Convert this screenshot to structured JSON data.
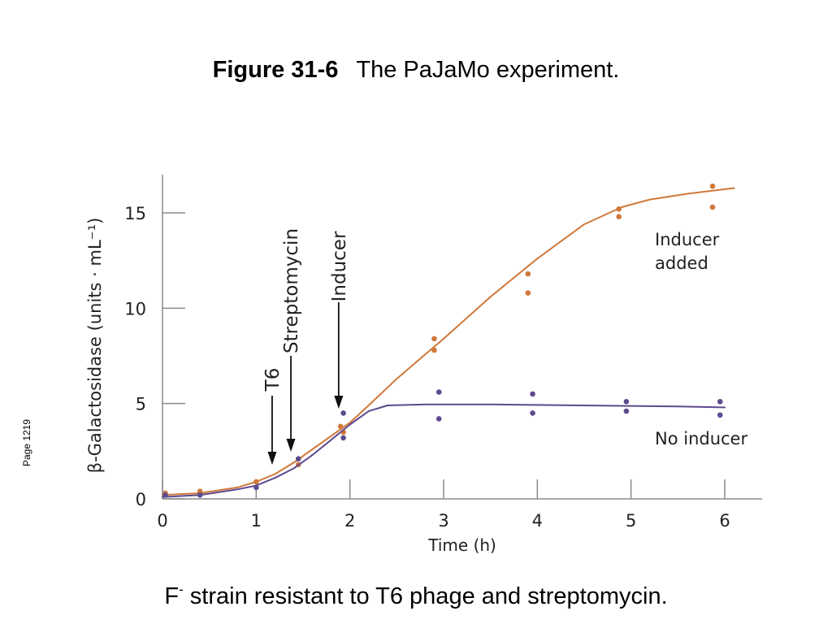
{
  "title": {
    "figure_label": "Figure 31-6",
    "text": "The PaJaMo experiment."
  },
  "side_note": "Page 1219",
  "caption": {
    "prefix": "F",
    "superscript": "-",
    "text": " strain resistant to T6 phage and streptomycin."
  },
  "chart_data": {
    "type": "line",
    "xlabel": "Time (h)",
    "ylabel": "β-Galactosidase (units · mL⁻¹)",
    "xlim": [
      0,
      6.4
    ],
    "ylim": [
      0,
      17
    ],
    "xticks": [
      0,
      1,
      2,
      3,
      4,
      5,
      6
    ],
    "yticks": [
      0,
      5,
      10,
      15
    ],
    "grid": false,
    "series": [
      {
        "name": "Inducer added",
        "color": "#d0783a",
        "curve": [
          [
            0,
            0.2
          ],
          [
            0.4,
            0.3
          ],
          [
            0.8,
            0.6
          ],
          [
            1.0,
            0.9
          ],
          [
            1.2,
            1.3
          ],
          [
            1.4,
            1.9
          ],
          [
            1.6,
            2.6
          ],
          [
            1.8,
            3.3
          ],
          [
            2.0,
            4.0
          ],
          [
            2.2,
            4.9
          ],
          [
            2.5,
            6.3
          ],
          [
            3.0,
            8.4
          ],
          [
            3.5,
            10.6
          ],
          [
            4.0,
            12.6
          ],
          [
            4.5,
            14.4
          ],
          [
            4.9,
            15.3
          ],
          [
            5.2,
            15.7
          ],
          [
            5.6,
            16.0
          ],
          [
            6.1,
            16.3
          ]
        ],
        "points": [
          [
            0.03,
            0.3
          ],
          [
            0.4,
            0.4
          ],
          [
            1.0,
            0.9
          ],
          [
            1.45,
            1.8
          ],
          [
            1.9,
            3.8
          ],
          [
            1.93,
            3.5
          ],
          [
            2.9,
            8.4
          ],
          [
            2.9,
            7.8
          ],
          [
            3.9,
            11.8
          ],
          [
            3.9,
            10.8
          ],
          [
            4.87,
            15.2
          ],
          [
            4.87,
            14.8
          ],
          [
            5.87,
            16.4
          ],
          [
            5.87,
            15.3
          ]
        ]
      },
      {
        "name": "No inducer",
        "color": "#5e4a8e",
        "curve": [
          [
            0,
            0.1
          ],
          [
            0.4,
            0.2
          ],
          [
            0.8,
            0.5
          ],
          [
            1.0,
            0.7
          ],
          [
            1.2,
            1.1
          ],
          [
            1.4,
            1.6
          ],
          [
            1.6,
            2.3
          ],
          [
            1.8,
            3.1
          ],
          [
            2.0,
            3.9
          ],
          [
            2.2,
            4.6
          ],
          [
            2.4,
            4.9
          ],
          [
            2.8,
            4.95
          ],
          [
            3.5,
            4.95
          ],
          [
            4.5,
            4.9
          ],
          [
            5.5,
            4.85
          ],
          [
            6.0,
            4.8
          ]
        ],
        "points": [
          [
            0.03,
            0.2
          ],
          [
            0.4,
            0.2
          ],
          [
            1.0,
            0.6
          ],
          [
            1.45,
            2.1
          ],
          [
            1.93,
            4.5
          ],
          [
            1.93,
            3.2
          ],
          [
            2.95,
            5.6
          ],
          [
            2.95,
            4.2
          ],
          [
            3.95,
            5.5
          ],
          [
            3.95,
            4.5
          ],
          [
            4.95,
            5.1
          ],
          [
            4.95,
            4.6
          ],
          [
            5.95,
            5.1
          ],
          [
            5.95,
            4.4
          ]
        ]
      }
    ],
    "annotations": [
      {
        "label": "T6",
        "x": 1.17
      },
      {
        "label": "Streptomycin",
        "x": 1.37
      },
      {
        "label": "Inducer",
        "x": 1.88
      }
    ],
    "series_labels": [
      {
        "lines": [
          "Inducer",
          "added"
        ]
      },
      {
        "lines": [
          "No inducer"
        ]
      }
    ]
  }
}
